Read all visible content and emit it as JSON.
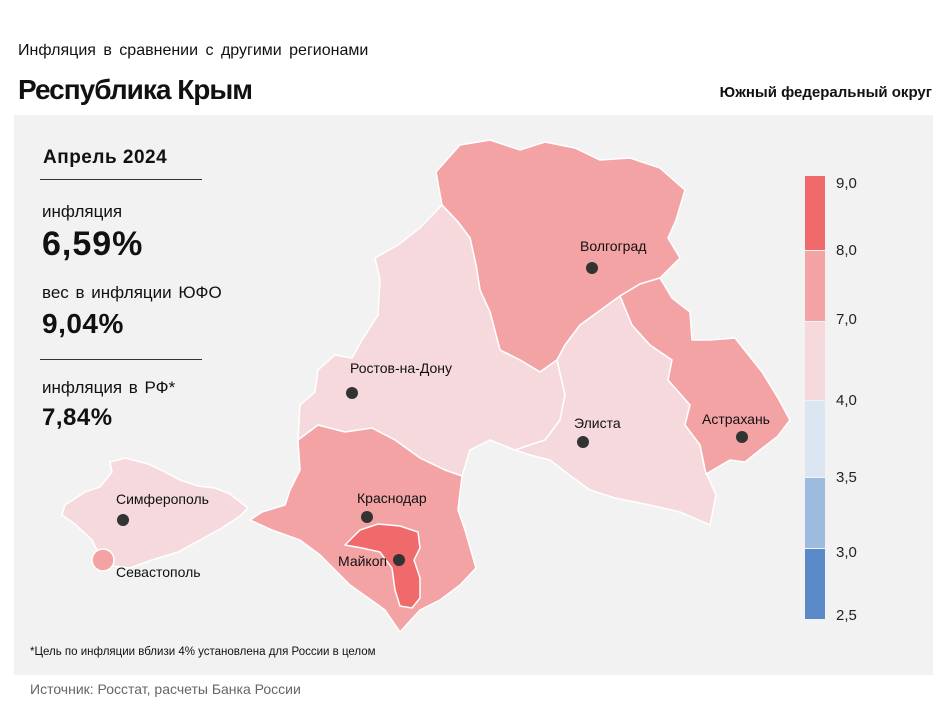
{
  "header": {
    "subtitle": "Инфляция в сравнении с другими регионами",
    "title": "Республика Крым",
    "district": "Южный федеральный округ"
  },
  "stats": {
    "period": "Апрель 2024",
    "inflation_label": "инфляция",
    "inflation_value": "6,59%",
    "weight_label": "вес в инфляции ЮФО",
    "weight_value": "9,04%",
    "rf_label": "инфляция в РФ*",
    "rf_value": "7,84%"
  },
  "map": {
    "cities": {
      "volgograd": "Волгоград",
      "rostov": "Ростов-на-Дону",
      "elista": "Элиста",
      "astrakhan": "Астрахань",
      "krasnodar": "Краснодар",
      "maykop": "Майкоп",
      "simferopol": "Симферополь",
      "sevastopol": "Севастополь"
    },
    "colors": {
      "above_8": "#f06a6b",
      "from_7_to_8": "#f4a3a5",
      "from_4_to_7": "#f5d9dc",
      "from_3_5_to_4": "#dce6f3",
      "from_3_to_3_5": "#9dbadf",
      "from_2_5_to_3": "#5a89c7"
    },
    "region_categories": {
      "volgograd_oblast": "from_7_to_8",
      "rostov_oblast": "from_4_to_7",
      "kalmykia": "from_4_to_7",
      "astrakhan_oblast": "from_7_to_8",
      "krasnodar_krai": "from_7_to_8",
      "adygea": "above_8",
      "crimea": "from_4_to_7",
      "sevastopol": "from_7_to_8"
    }
  },
  "legend": {
    "labels": [
      "9,0",
      "8,0",
      "7,0",
      "4,0",
      "3,5",
      "3,0",
      "2,5"
    ]
  },
  "footer": {
    "note": "*Цель по инфляции вблизи 4% установлена для России в целом",
    "source": "Источник: Росстат, расчеты Банка России"
  }
}
